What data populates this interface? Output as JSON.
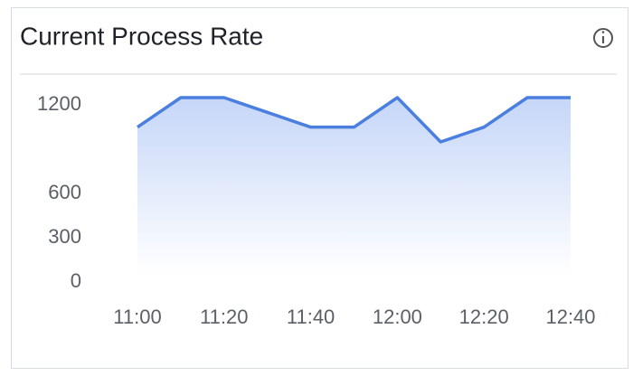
{
  "chart_data": {
    "type": "area",
    "title": "Current Process Rate",
    "categories": [
      "11:00",
      null,
      "11:20",
      null,
      "11:40",
      null,
      "12:00",
      null,
      "12:20",
      null,
      "12:40"
    ],
    "values": [
      1000,
      1200,
      1200,
      1100,
      1000,
      1000,
      1200,
      900,
      1000,
      1200,
      1200
    ],
    "color": "#4a7fe0",
    "ylim": [
      0,
      1200
    ],
    "yticks": [
      0,
      300,
      600,
      1200
    ],
    "grid": false
  }
}
